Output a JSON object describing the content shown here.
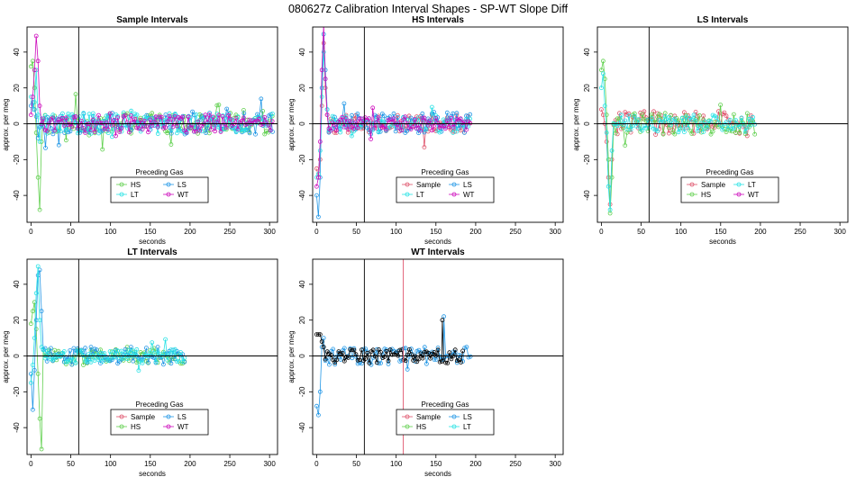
{
  "figure": {
    "title": "080627z   Calibration Interval Shapes - SP-WT Slope Diff",
    "background": "#ffffff"
  },
  "series_colors": {
    "Sample": "#df536b",
    "HS": "#61d04f",
    "LS": "#2297e6",
    "LT": "#28e2e5",
    "WT": "#cd0bbc",
    "Black": "#000000"
  },
  "chart_data": [
    {
      "type": "scatter",
      "title": "Sample Intervals",
      "xlabel": "seconds",
      "ylabel": "approx. per meg",
      "xlim": [
        -5,
        310
      ],
      "ylim": [
        -55,
        54
      ],
      "xticks": [
        0,
        50,
        100,
        150,
        200,
        250,
        300
      ],
      "yticks": [
        -40,
        -20,
        0,
        20,
        40
      ],
      "hline": 0,
      "vlines": [
        {
          "x": 60,
          "color": "#000000"
        }
      ],
      "legend": {
        "title": "Preceding Gas",
        "entries": [
          "HS",
          "LS",
          "LT",
          "WT"
        ]
      },
      "series": [
        {
          "name": "HS",
          "x_end": 305,
          "initial": [
            32,
            35,
            20,
            -5,
            -30,
            -48,
            -10
          ],
          "noise": 6
        },
        {
          "name": "LS",
          "x_end": 305,
          "initial": [
            10,
            12,
            8,
            4,
            -8
          ],
          "noise": 6
        },
        {
          "name": "LT",
          "x_end": 305,
          "initial": [
            15,
            8,
            12,
            30,
            5,
            -10
          ],
          "noise": 6
        },
        {
          "name": "WT",
          "x_end": 305,
          "initial": [
            5,
            15,
            30,
            49,
            35,
            10,
            0
          ],
          "noise": 5
        }
      ]
    },
    {
      "type": "scatter",
      "title": "HS Intervals",
      "xlabel": "seconds",
      "ylabel": "approx. per meg",
      "xlim": [
        -5,
        310
      ],
      "ylim": [
        -55,
        54
      ],
      "xticks": [
        0,
        50,
        100,
        150,
        200,
        250,
        300
      ],
      "yticks": [
        -40,
        -20,
        0,
        20,
        40
      ],
      "hline": 0,
      "vlines": [
        {
          "x": 60,
          "color": "#000000"
        }
      ],
      "legend": {
        "title": "Preceding Gas",
        "entries": [
          "Sample",
          "LS",
          "LT",
          "WT"
        ]
      },
      "series": [
        {
          "name": "Sample",
          "x_end": 195,
          "initial": [
            -25,
            -30,
            -20,
            10,
            45,
            20,
            5
          ],
          "noise": 5
        },
        {
          "name": "LS",
          "x_end": 195,
          "initial": [
            -40,
            -52,
            -30,
            20,
            50,
            30,
            8
          ],
          "noise": 6
        },
        {
          "name": "LT",
          "x_end": 195,
          "initial": [
            -30,
            -28,
            -15,
            15,
            40,
            25,
            8
          ],
          "noise": 5
        },
        {
          "name": "WT",
          "x_end": 195,
          "initial": [
            -35,
            -30,
            -10,
            30,
            55,
            25,
            5
          ],
          "noise": 4
        }
      ]
    },
    {
      "type": "scatter",
      "title": "LS Intervals",
      "xlabel": "seconds",
      "ylabel": "approx. per meg",
      "xlim": [
        -5,
        310
      ],
      "ylim": [
        -55,
        54
      ],
      "xticks": [
        0,
        50,
        100,
        150,
        200,
        250,
        300
      ],
      "yticks": [
        -40,
        -20,
        0,
        20,
        40
      ],
      "hline": 0,
      "vlines": [
        {
          "x": 60,
          "color": "#000000"
        }
      ],
      "legend": {
        "title": "Preceding Gas",
        "entries": [
          "Sample",
          "LT",
          "HS",
          "WT"
        ]
      },
      "series": [
        {
          "name": "Sample",
          "x_end": 195,
          "initial": [
            8,
            5,
            0,
            -10,
            -30,
            -45,
            -20
          ],
          "noise": 7
        },
        {
          "name": "HS",
          "x_end": 195,
          "initial": [
            30,
            35,
            25,
            5,
            -20,
            -50,
            -30
          ],
          "noise": 6
        },
        {
          "name": "LT",
          "x_end": 195,
          "initial": [
            20,
            28,
            10,
            -5,
            -35,
            -48,
            -15
          ],
          "noise": 5
        }
      ]
    },
    {
      "type": "scatter",
      "title": "LT Intervals",
      "xlabel": "seconds",
      "ylabel": "approx. per meg",
      "xlim": [
        -5,
        310
      ],
      "ylim": [
        -55,
        54
      ],
      "xticks": [
        0,
        50,
        100,
        150,
        200,
        250,
        300
      ],
      "yticks": [
        -40,
        -20,
        0,
        20,
        40
      ],
      "hline": 0,
      "vlines": [
        {
          "x": 60,
          "color": "#000000"
        }
      ],
      "legend": {
        "title": "Preceding Gas",
        "entries": [
          "Sample",
          "LS",
          "HS",
          "WT"
        ]
      },
      "series": [
        {
          "name": "HS",
          "x_end": 195,
          "initial": [
            18,
            25,
            30,
            15,
            -10,
            -35,
            -52
          ],
          "noise": 5
        },
        {
          "name": "LS",
          "x_end": 195,
          "initial": [
            -10,
            -30,
            -8,
            20,
            45,
            48,
            25
          ],
          "noise": 5
        },
        {
          "name": "LT",
          "x_end": 195,
          "initial": [
            -15,
            -5,
            10,
            35,
            50,
            20,
            5
          ],
          "noise": 4
        }
      ]
    },
    {
      "type": "scatter",
      "title": "WT Intervals",
      "xlabel": "seconds",
      "ylabel": "approx. per meg",
      "xlim": [
        -5,
        310
      ],
      "ylim": [
        -55,
        54
      ],
      "xticks": [
        0,
        50,
        100,
        150,
        200,
        250,
        300
      ],
      "yticks": [
        -40,
        -20,
        0,
        20,
        40
      ],
      "hline": 0,
      "vlines": [
        {
          "x": 60,
          "color": "#000000"
        },
        {
          "x": 109,
          "color": "#df536b"
        }
      ],
      "legend": {
        "title": "Preceding Gas",
        "entries": [
          "Sample",
          "LS",
          "HS",
          "LT"
        ]
      },
      "series": [
        {
          "name": "LS",
          "x_end": 195,
          "initial": [
            -28,
            -33,
            -20,
            5,
            10
          ],
          "noise": 5,
          "spikes": [
            [
              160,
              22
            ]
          ]
        },
        {
          "name": "Black",
          "x_end": 185,
          "initial": [
            12,
            12,
            12,
            8,
            5
          ],
          "noise": 4,
          "spikes": [
            [
              158,
              20
            ]
          ]
        }
      ]
    }
  ]
}
